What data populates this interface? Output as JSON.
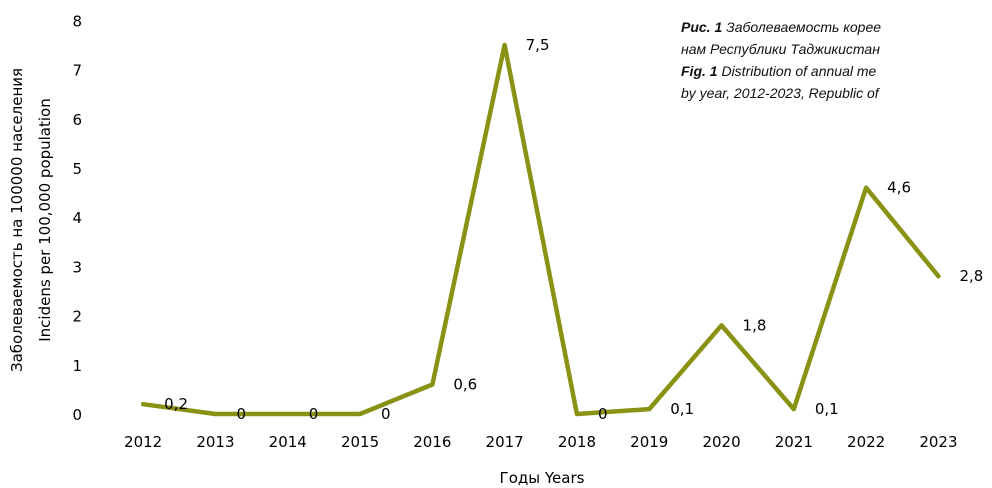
{
  "caption": {
    "ru_prefix": "Рис. 1",
    "ru_line1": "Заболеваемость корее",
    "ru_line2": "нам Республики Таджикистан",
    "en_prefix": "Fig. 1",
    "en_line1": "Distribution of annual me",
    "en_line2": "by year, 2012-2023, Republic of"
  },
  "chart_data": {
    "type": "line",
    "title": "",
    "xlabel": "Годы Years",
    "ylabel_line1": "Заболеваемость на 100000 населения",
    "ylabel_line2": "Incidens per 100,000 population",
    "ylim": [
      0,
      8
    ],
    "y_ticks": [
      "0",
      "1",
      "2",
      "3",
      "4",
      "5",
      "6",
      "7",
      "8"
    ],
    "categories": [
      "2012",
      "2013",
      "2014",
      "2015",
      "2016",
      "2017",
      "2018",
      "2019",
      "2020",
      "2021",
      "2022",
      "2023"
    ],
    "series": [
      {
        "values": [
          0.2,
          0,
          0,
          0,
          0.6,
          7.5,
          0,
          0.1,
          1.8,
          0.1,
          4.6,
          2.8
        ],
        "labels": [
          "0,2",
          "0",
          "0",
          "0",
          "0,6",
          "7,5",
          "0",
          "0,1",
          "1,8",
          "0,1",
          "4,6",
          "2,8"
        ],
        "color": "#8a9214"
      }
    ],
    "grid": false,
    "legend": "none"
  }
}
